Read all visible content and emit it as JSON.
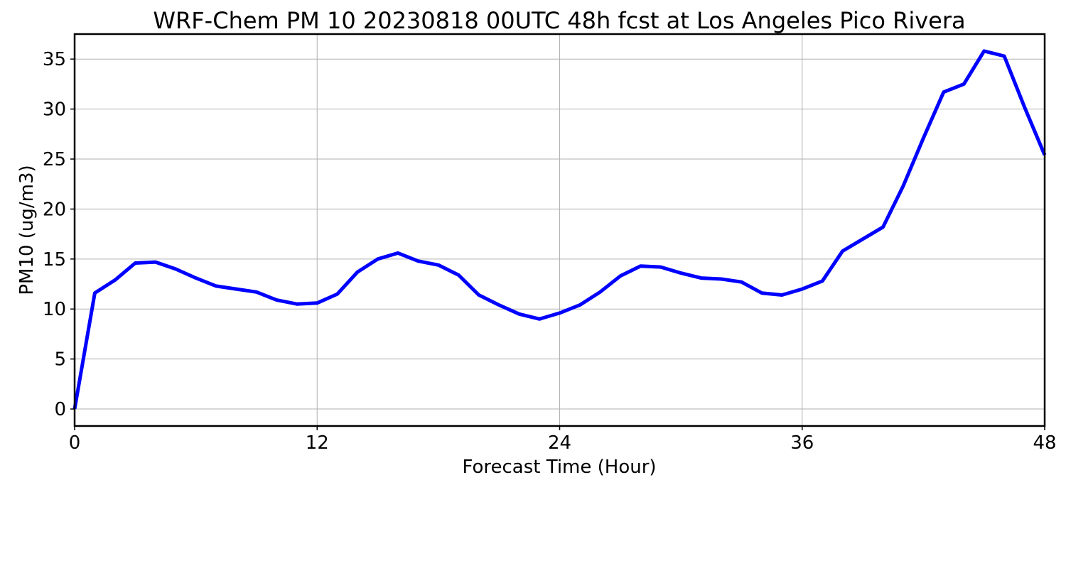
{
  "chart_data": {
    "type": "line",
    "title": "WRF-Chem PM 10  20230818 00UTC 48h fcst at Los Angeles Pico Rivera",
    "xlabel": "Forecast Time (Hour)",
    "ylabel": "PM10  (ug/m3)",
    "xlim": [
      0,
      48
    ],
    "ylim": [
      -1.7,
      37.5
    ],
    "xticks": [
      0,
      12,
      24,
      36,
      48
    ],
    "yticks": [
      0,
      5,
      10,
      15,
      20,
      25,
      30,
      35
    ],
    "grid": true,
    "series_color": "#0000ff",
    "x": [
      0,
      1,
      2,
      3,
      4,
      5,
      6,
      7,
      8,
      9,
      10,
      11,
      12,
      13,
      14,
      15,
      16,
      17,
      18,
      19,
      20,
      21,
      22,
      23,
      24,
      25,
      26,
      27,
      28,
      29,
      30,
      31,
      32,
      33,
      34,
      35,
      36,
      37,
      38,
      39,
      40,
      41,
      42,
      43,
      44,
      45,
      46,
      47,
      48
    ],
    "y": [
      0,
      11.6,
      12.9,
      14.6,
      14.7,
      14.0,
      13.1,
      12.3,
      12.0,
      11.7,
      10.9,
      10.5,
      10.6,
      11.5,
      13.7,
      15.0,
      15.6,
      14.8,
      14.4,
      13.4,
      11.4,
      10.4,
      9.5,
      9.0,
      9.6,
      10.4,
      11.7,
      13.3,
      14.3,
      14.2,
      13.6,
      13.1,
      13.0,
      12.7,
      11.6,
      11.4,
      12.0,
      12.8,
      15.8,
      17.0,
      18.2,
      22.3,
      27.1,
      31.7,
      32.5,
      35.8,
      35.3,
      30.2,
      25.4
    ]
  }
}
